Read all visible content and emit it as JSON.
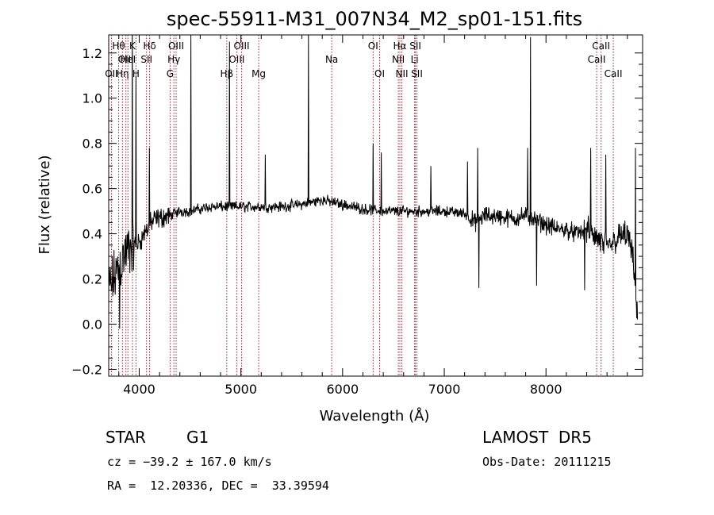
{
  "chart_data": {
    "type": "line",
    "title": "spec-55911-M31_007N34_M2_sp01-151.fits",
    "xlabel": "Wavelength (Å)",
    "ylabel": "Flux (relative)",
    "xlim": [
      3700,
      8950
    ],
    "ylim": [
      -0.23,
      1.28
    ],
    "xticks": [
      4000,
      5000,
      6000,
      7000,
      8000
    ],
    "yticks": [
      -0.2,
      0.0,
      0.2,
      0.4,
      0.6,
      0.8,
      1.0,
      1.2
    ],
    "ytick_labels": [
      "−0.2",
      "0.0",
      "0.2",
      "0.4",
      "0.6",
      "0.8",
      "1.0",
      "1.2"
    ],
    "grid": false,
    "line_color": "#000000",
    "marker_color": "#a0202a",
    "spectrum_anchors": {
      "x": [
        3700,
        3750,
        3800,
        3850,
        3900,
        3950,
        4000,
        4050,
        4100,
        4150,
        4200,
        4300,
        4400,
        4500,
        4600,
        4700,
        4800,
        4900,
        5000,
        5200,
        5400,
        5600,
        5800,
        6000,
        6200,
        6400,
        6600,
        6800,
        7000,
        7200,
        7300,
        7400,
        7500,
        7600,
        7700,
        7800,
        7900,
        8000,
        8100,
        8200,
        8300,
        8400,
        8500,
        8600,
        8700,
        8800,
        8850,
        8900
      ],
      "y": [
        0.15,
        0.2,
        0.25,
        0.3,
        0.33,
        0.35,
        0.36,
        0.4,
        0.44,
        0.46,
        0.47,
        0.48,
        0.5,
        0.5,
        0.51,
        0.52,
        0.52,
        0.52,
        0.52,
        0.52,
        0.52,
        0.53,
        0.55,
        0.53,
        0.51,
        0.5,
        0.5,
        0.5,
        0.5,
        0.49,
        0.45,
        0.48,
        0.48,
        0.47,
        0.47,
        0.48,
        0.46,
        0.44,
        0.42,
        0.42,
        0.4,
        0.42,
        0.38,
        0.34,
        0.38,
        0.4,
        0.3,
        0.05
      ]
    },
    "noise_levels": [
      {
        "from": 3700,
        "to": 3950,
        "amplitude": 0.16
      },
      {
        "from": 3950,
        "to": 4300,
        "amplitude": 0.06
      },
      {
        "from": 4300,
        "to": 7250,
        "amplitude": 0.03
      },
      {
        "from": 7250,
        "to": 8400,
        "amplitude": 0.05
      },
      {
        "from": 8400,
        "to": 8950,
        "amplitude": 0.08
      }
    ],
    "spikes": [
      {
        "x": 3934,
        "y": 1.28
      },
      {
        "x": 3969,
        "y": 1.1
      },
      {
        "x": 4102,
        "y": 0.78
      },
      {
        "x": 4510,
        "y": 1.28
      },
      {
        "x": 4890,
        "y": 1.25
      },
      {
        "x": 5240,
        "y": 0.75
      },
      {
        "x": 5665,
        "y": 1.28
      },
      {
        "x": 6300,
        "y": 0.8
      },
      {
        "x": 6380,
        "y": 0.76
      },
      {
        "x": 6870,
        "y": 0.7
      },
      {
        "x": 7230,
        "y": 0.72
      },
      {
        "x": 7330,
        "y": 0.78
      },
      {
        "x": 7850,
        "y": 1.27
      },
      {
        "x": 7820,
        "y": 0.78
      },
      {
        "x": 8440,
        "y": 0.78
      },
      {
        "x": 8590,
        "y": 0.75
      },
      {
        "x": 8880,
        "y": 0.78
      }
    ],
    "dips": [
      {
        "x": 7340,
        "y": 0.16
      },
      {
        "x": 7910,
        "y": 0.17
      },
      {
        "x": 8380,
        "y": 0.15
      },
      {
        "x": 3810,
        "y": -0.02
      }
    ],
    "spectral_lines": [
      {
        "label": "OII",
        "x": 3727,
        "row": 3
      },
      {
        "label": "Hθ",
        "x": 3798,
        "row": 1
      },
      {
        "label": "Hη",
        "x": 3835,
        "row": 3
      },
      {
        "label": "OIII",
        "x": 3869,
        "row": 2
      },
      {
        "label": "HeI",
        "x": 3889,
        "row": 2
      },
      {
        "label": "K",
        "x": 3934,
        "row": 1
      },
      {
        "label": "H",
        "x": 3968,
        "row": 3
      },
      {
        "label": "SII",
        "x": 4072,
        "row": 2
      },
      {
        "label": "Hδ",
        "x": 4102,
        "row": 1
      },
      {
        "label": "G",
        "x": 4304,
        "row": 3
      },
      {
        "label": "Hγ",
        "x": 4341,
        "row": 2
      },
      {
        "label": "OIII",
        "x": 4363,
        "row": 1
      },
      {
        "label": "Hβ",
        "x": 4861,
        "row": 3
      },
      {
        "label": "OIII",
        "x": 4959,
        "row": 2
      },
      {
        "label": "OIII",
        "x": 5007,
        "row": 1
      },
      {
        "label": "Mg",
        "x": 5175,
        "row": 3
      },
      {
        "label": "Na",
        "x": 5893,
        "row": 2
      },
      {
        "label": "OI",
        "x": 6300,
        "row": 1
      },
      {
        "label": "OI",
        "x": 6364,
        "row": 3
      },
      {
        "label": "NII",
        "x": 6548,
        "row": 2
      },
      {
        "label": "Hα",
        "x": 6563,
        "row": 1
      },
      {
        "label": "NII",
        "x": 6583,
        "row": 3
      },
      {
        "label": "Li",
        "x": 6708,
        "row": 2
      },
      {
        "label": "SII",
        "x": 6716,
        "row": 1
      },
      {
        "label": "SII",
        "x": 6731,
        "row": 3
      },
      {
        "label": "CaII",
        "x": 8498,
        "row": 2
      },
      {
        "label": "CaII",
        "x": 8542,
        "row": 1
      },
      {
        "label": "CaII",
        "x": 8662,
        "row": 3
      }
    ]
  },
  "info": {
    "class": "STAR",
    "subclass": "G1",
    "survey": "LAMOST  DR5",
    "velocity": "cz = −39.2 ± 167.0 km/s",
    "obs_date": "Obs-Date: 20111215",
    "coords": "RA =  12.20336, DEC =  33.39594"
  }
}
